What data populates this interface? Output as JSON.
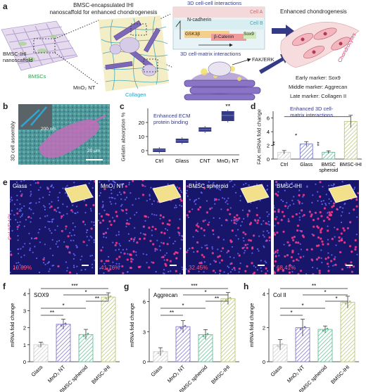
{
  "panel_a": {
    "letter": "a",
    "title": "BMSC-encapsulated IHI\nnanoscaffold for enhanced chondrogenesis",
    "title_line1": "BMSC-encapsulated IHI",
    "title_line2": "nanoscaffold for enhanced chondrogenesis",
    "label_scaffold_line1": "BMSC-IHI",
    "label_scaffold_line2": "nanoscaffold",
    "label_bmscs": "BMSCs",
    "label_mno2": "MnO₂ NT",
    "label_collagen": "Collagen",
    "cell_cell_title": "3D cell-cell interactions",
    "cell_a": "Cell A",
    "cell_b": "Cell B",
    "n_cadherin": "N-cadherin",
    "gsk3b": "GSK3β",
    "b_catenin": "β-Catenin",
    "sox9": "Sox9",
    "cell_matrix_title": "3D cell-matrix interactions",
    "fak_erk": "FAK/ERK",
    "enhanced_title": "Enhanced chondrogenesis",
    "chondrocytes": "Chondrocytes",
    "early_marker": "Early marker: Sox9",
    "middle_marker": "Middle marker: Aggrecan",
    "late_marker": "Late marker: Collagen II"
  },
  "panel_b": {
    "letter": "b",
    "ylabel": "3D cell assembly",
    "inset_scale": "200 nm",
    "scale": "20 μm"
  },
  "panel_c": {
    "letter": "c",
    "ylabel": "Gelatin absorption %",
    "annotation": "Enhanced ECM\nprotein binding",
    "annotation_line1": "Enhanced ECM",
    "annotation_line2": "protein binding",
    "sig": "**"
  },
  "panel_d": {
    "letter": "d",
    "ylabel": "FAK mRNA fold change",
    "annotation_line1": "Enhanced 3D cell-",
    "annotation_line2": "matrix interactions"
  },
  "panel_e": {
    "letter": "e",
    "ylabel": "Col II/DAPI",
    "images": [
      {
        "name": "Glass",
        "percent": "10.69%"
      },
      {
        "name": "MnO₂ NT",
        "percent": "41.76%"
      },
      {
        "name": "BMSC spheroid",
        "percent": "32.45%"
      },
      {
        "name": "BMSC-IHI",
        "percent": "68.41%"
      }
    ]
  },
  "panel_f": {
    "letter": "f",
    "title": "SOX9",
    "ylabel": "mRNA fold change"
  },
  "panel_g": {
    "letter": "g",
    "title": "Aggrecan",
    "ylabel": "mRNA fold change"
  },
  "panel_h": {
    "letter": "h",
    "title": "Col II",
    "ylabel": "mRNA fold change"
  },
  "chart_data": [
    {
      "id": "c",
      "type": "box",
      "categories": [
        "Ctrl",
        "Glass",
        "CNT",
        "MnO₂ NT"
      ],
      "values": [
        0.5,
        7,
        15,
        25
      ],
      "ranges": [
        [
          -1,
          1.5
        ],
        [
          5.5,
          8.5
        ],
        [
          13.5,
          16.5
        ],
        [
          21,
          28
        ]
      ],
      "ylabel": "Gelatin absorption %",
      "ylim": [
        -3,
        30
      ],
      "yticks": [
        0,
        10,
        20
      ],
      "significance": [
        "",
        "",
        "",
        "**"
      ]
    },
    {
      "id": "d",
      "type": "bar",
      "categories": [
        "Ctrl",
        "Glass",
        "BMSC spheroid",
        "BMSC-IHI"
      ],
      "values": [
        1.0,
        2.2,
        1.0,
        5.5
      ],
      "errors": [
        0.25,
        0.35,
        0.2,
        0.9
      ],
      "ylabel": "FAK mRNA fold change",
      "ylim": [
        0,
        7
      ],
      "yticks": [
        0,
        2,
        4,
        6
      ],
      "significance": [
        "**",
        "*",
        "**",
        ""
      ]
    },
    {
      "id": "f",
      "type": "bar",
      "title": "SOX9",
      "categories": [
        "Glass",
        "MnO₂ NT",
        "BMSC spheroid",
        "BMSC-IHI"
      ],
      "values": [
        1.0,
        2.2,
        1.6,
        3.8
      ],
      "errors": [
        0.15,
        0.3,
        0.3,
        0.25
      ],
      "ylabel": "mRNA fold change",
      "ylim": [
        0,
        4.3
      ],
      "yticks": [
        0,
        1,
        2,
        3,
        4
      ],
      "brackets": [
        {
          "from": 0,
          "to": 3,
          "label": "***"
        },
        {
          "from": 1,
          "to": 3,
          "label": "*"
        },
        {
          "from": 2,
          "to": 3,
          "label": "**"
        },
        {
          "from": 0,
          "to": 2,
          "label": "*"
        },
        {
          "from": 0,
          "to": 1,
          "label": "**"
        }
      ]
    },
    {
      "id": "g",
      "type": "bar",
      "title": "Aggrecan",
      "categories": [
        "Glass",
        "MnO₂ NT",
        "BMSC spheroid",
        "BMSC-IHI"
      ],
      "values": [
        1.0,
        3.5,
        2.7,
        6.3
      ],
      "errors": [
        0.4,
        0.6,
        0.5,
        0.6
      ],
      "ylabel": "mRNA fold change",
      "ylim": [
        0,
        7.3
      ],
      "yticks": [
        0,
        3,
        6
      ],
      "brackets": [
        {
          "from": 0,
          "to": 3,
          "label": "***"
        },
        {
          "from": 1,
          "to": 3,
          "label": "*"
        },
        {
          "from": 2,
          "to": 3,
          "label": "**"
        },
        {
          "from": 0,
          "to": 2,
          "label": "*"
        },
        {
          "from": 0,
          "to": 1,
          "label": "**"
        }
      ]
    },
    {
      "id": "h",
      "type": "bar",
      "title": "Col II",
      "categories": [
        "Glass",
        "MnO₂ NT",
        "BMSC spheroid",
        "BMSC-IHI"
      ],
      "values": [
        1.0,
        2.0,
        1.9,
        3.5
      ],
      "errors": [
        0.3,
        0.5,
        0.2,
        0.35
      ],
      "ylabel": "mRNA fold change",
      "ylim": [
        0,
        4.3
      ],
      "yticks": [
        0,
        2,
        4
      ],
      "brackets": [
        {
          "from": 0,
          "to": 3,
          "label": "**"
        },
        {
          "from": 1,
          "to": 3,
          "label": "*"
        },
        {
          "from": 2,
          "to": 3,
          "label": "*"
        },
        {
          "from": 0,
          "to": 2,
          "label": "*"
        },
        {
          "from": 0,
          "to": 1,
          "label": "*"
        }
      ]
    }
  ],
  "colors": {
    "ctrl": "#c8c8c8",
    "glass": "#6a6fc4",
    "mno2": "#7a6ac6",
    "spheroid": "#56b98e",
    "ihi": "#b5c06a",
    "navy": "#343a86",
    "cyan": "#2b9fb9",
    "pink": "#d03c6a"
  }
}
